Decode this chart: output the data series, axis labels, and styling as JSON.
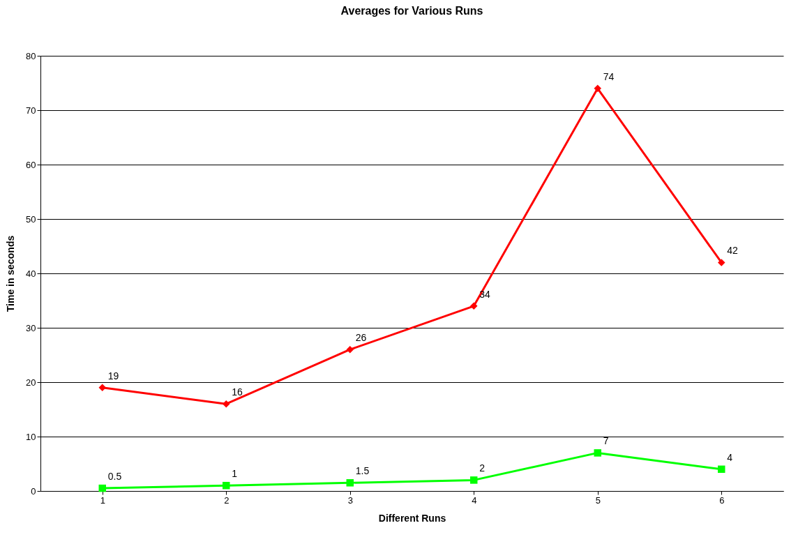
{
  "chart_data": {
    "type": "line",
    "title": "Averages for Various Runs",
    "xlabel": "Different Runs",
    "ylabel": "Time in seconds",
    "categories": [
      "1",
      "2",
      "3",
      "4",
      "5",
      "6"
    ],
    "series": [
      {
        "color": "#ff0000",
        "marker": "diamond",
        "values": [
          19,
          16,
          26,
          34,
          74,
          42
        ]
      },
      {
        "color": "#00ff00",
        "marker": "square",
        "values": [
          0.5,
          1,
          1.5,
          2,
          7,
          4
        ]
      }
    ],
    "ylim": [
      0,
      80
    ],
    "yticks": [
      0,
      10,
      20,
      30,
      40,
      50,
      60,
      70,
      80
    ],
    "grid": "y",
    "data_labels": true,
    "line_style": "solid"
  }
}
